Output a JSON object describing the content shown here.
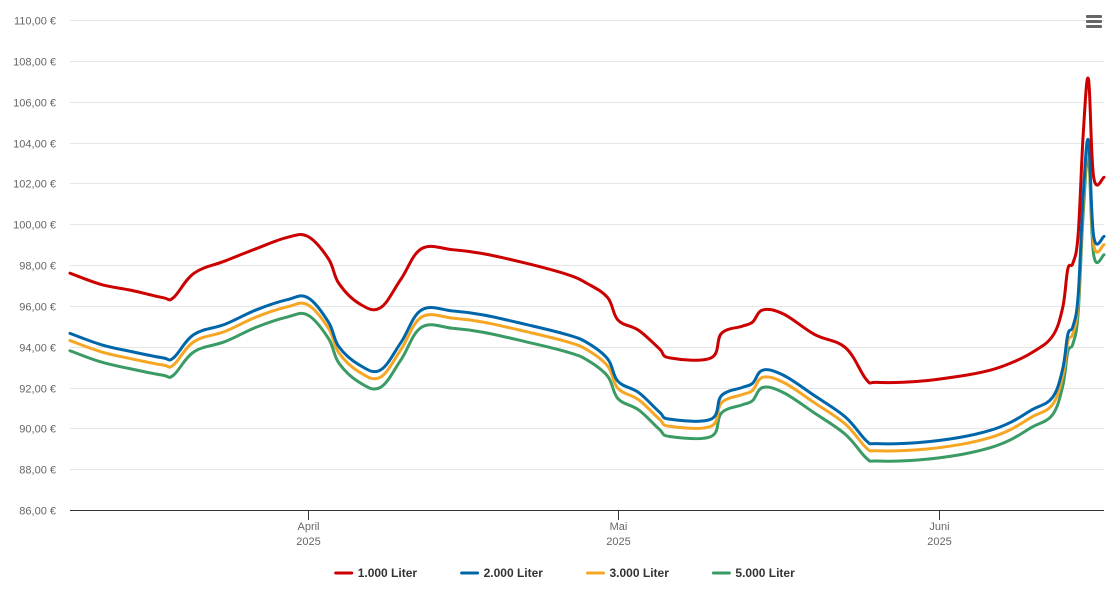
{
  "menu": {
    "icon": "hamburger-menu-icon"
  },
  "chart_data": {
    "type": "line",
    "ylim": [
      86,
      110
    ],
    "yticks": [
      86,
      88,
      90,
      92,
      94,
      96,
      98,
      100,
      102,
      104,
      106,
      108,
      110
    ],
    "ytick_labels": [
      "86,00 €",
      "88,00 €",
      "90,00 €",
      "92,00 €",
      "94,00 €",
      "96,00 €",
      "98,00 €",
      "100,00 €",
      "102,00 €",
      "104,00 €",
      "106,00 €",
      "108,00 €",
      "110,00 €"
    ],
    "xlim": [
      "2025-03-09",
      "2025-06-17"
    ],
    "xticks": [
      {
        "date": "2025-04-01",
        "label": "April",
        "sublabel": "2025"
      },
      {
        "date": "2025-05-01",
        "label": "Mai",
        "sublabel": "2025"
      },
      {
        "date": "2025-06-01",
        "label": "Juni",
        "sublabel": "2025"
      }
    ],
    "grid": true,
    "legend_position": "bottom",
    "series": [
      {
        "name": "1.000 Liter",
        "color": "#cc0000",
        "points": [
          [
            "2025-03-09",
            97.6
          ],
          [
            "2025-03-12",
            97.05
          ],
          [
            "2025-03-15",
            96.75
          ],
          [
            "2025-03-18",
            96.4
          ],
          [
            "2025-03-19",
            96.4
          ],
          [
            "2025-03-21",
            97.6
          ],
          [
            "2025-03-24",
            98.2
          ],
          [
            "2025-03-27",
            98.8
          ],
          [
            "2025-03-30",
            99.35
          ],
          [
            "2025-04-01",
            99.4
          ],
          [
            "2025-04-03",
            98.3
          ],
          [
            "2025-04-04",
            97.1
          ],
          [
            "2025-04-06",
            96.1
          ],
          [
            "2025-04-08",
            95.9
          ],
          [
            "2025-04-10",
            97.3
          ],
          [
            "2025-04-12",
            98.8
          ],
          [
            "2025-04-15",
            98.75
          ],
          [
            "2025-04-18",
            98.55
          ],
          [
            "2025-04-22",
            98.1
          ],
          [
            "2025-04-26",
            97.55
          ],
          [
            "2025-04-28",
            97.1
          ],
          [
            "2025-04-30",
            96.4
          ],
          [
            "2025-05-01",
            95.3
          ],
          [
            "2025-05-03",
            94.8
          ],
          [
            "2025-05-05",
            93.9
          ],
          [
            "2025-05-06",
            93.45
          ],
          [
            "2025-05-10",
            93.45
          ],
          [
            "2025-05-11",
            94.65
          ],
          [
            "2025-05-13",
            95.0
          ],
          [
            "2025-05-14",
            95.2
          ],
          [
            "2025-05-15",
            95.8
          ],
          [
            "2025-05-17",
            95.6
          ],
          [
            "2025-05-20",
            94.6
          ],
          [
            "2025-05-23",
            93.95
          ],
          [
            "2025-05-25",
            92.4
          ],
          [
            "2025-05-26",
            92.25
          ],
          [
            "2025-05-30",
            92.3
          ],
          [
            "2025-06-03",
            92.55
          ],
          [
            "2025-06-06",
            92.85
          ],
          [
            "2025-06-08",
            93.2
          ],
          [
            "2025-06-10",
            93.7
          ],
          [
            "2025-06-12",
            94.5
          ],
          [
            "2025-06-13",
            95.9
          ],
          [
            "2025-06-13.5",
            97.8
          ],
          [
            "2025-06-14",
            98.1
          ],
          [
            "2025-06-14.5",
            99.5
          ],
          [
            "2025-06-15",
            104.5
          ],
          [
            "2025-06-15.5",
            107.1
          ],
          [
            "2025-06-16",
            102.3
          ],
          [
            "2025-06-17",
            102.3
          ]
        ]
      },
      {
        "name": "2.000 Liter",
        "color": "#0066aa",
        "points": [
          [
            "2025-03-09",
            94.65
          ],
          [
            "2025-03-12",
            94.1
          ],
          [
            "2025-03-15",
            93.75
          ],
          [
            "2025-03-18",
            93.45
          ],
          [
            "2025-03-19",
            93.45
          ],
          [
            "2025-03-21",
            94.6
          ],
          [
            "2025-03-24",
            95.1
          ],
          [
            "2025-03-27",
            95.8
          ],
          [
            "2025-03-30",
            96.3
          ],
          [
            "2025-04-01",
            96.4
          ],
          [
            "2025-04-03",
            95.2
          ],
          [
            "2025-04-04",
            94.0
          ],
          [
            "2025-04-06",
            93.1
          ],
          [
            "2025-04-08",
            92.85
          ],
          [
            "2025-04-10",
            94.2
          ],
          [
            "2025-04-12",
            95.8
          ],
          [
            "2025-04-15",
            95.75
          ],
          [
            "2025-04-18",
            95.55
          ],
          [
            "2025-04-22",
            95.1
          ],
          [
            "2025-04-26",
            94.6
          ],
          [
            "2025-04-28",
            94.2
          ],
          [
            "2025-04-30",
            93.4
          ],
          [
            "2025-05-01",
            92.3
          ],
          [
            "2025-05-03",
            91.75
          ],
          [
            "2025-05-05",
            90.8
          ],
          [
            "2025-05-06",
            90.45
          ],
          [
            "2025-05-10",
            90.45
          ],
          [
            "2025-05-11",
            91.6
          ],
          [
            "2025-05-13",
            92.0
          ],
          [
            "2025-05-14",
            92.2
          ],
          [
            "2025-05-15",
            92.85
          ],
          [
            "2025-05-17",
            92.6
          ],
          [
            "2025-05-20",
            91.6
          ],
          [
            "2025-05-23",
            90.55
          ],
          [
            "2025-05-25",
            89.4
          ],
          [
            "2025-05-26",
            89.25
          ],
          [
            "2025-05-30",
            89.3
          ],
          [
            "2025-06-03",
            89.55
          ],
          [
            "2025-06-06",
            89.9
          ],
          [
            "2025-06-08",
            90.3
          ],
          [
            "2025-06-10",
            90.9
          ],
          [
            "2025-06-12",
            91.5
          ],
          [
            "2025-06-13",
            92.9
          ],
          [
            "2025-06-13.5",
            94.6
          ],
          [
            "2025-06-14",
            95.0
          ],
          [
            "2025-06-14.5",
            96.5
          ],
          [
            "2025-06-15",
            101.5
          ],
          [
            "2025-06-15.5",
            104.1
          ],
          [
            "2025-06-16",
            99.4
          ],
          [
            "2025-06-17",
            99.4
          ]
        ]
      },
      {
        "name": "3.000 Liter",
        "color": "#f5a623",
        "points": [
          [
            "2025-03-09",
            94.3
          ],
          [
            "2025-03-12",
            93.75
          ],
          [
            "2025-03-15",
            93.4
          ],
          [
            "2025-03-18",
            93.1
          ],
          [
            "2025-03-19",
            93.1
          ],
          [
            "2025-03-21",
            94.25
          ],
          [
            "2025-03-24",
            94.75
          ],
          [
            "2025-03-27",
            95.45
          ],
          [
            "2025-03-30",
            95.95
          ],
          [
            "2025-04-01",
            96.05
          ],
          [
            "2025-04-03",
            94.9
          ],
          [
            "2025-04-04",
            93.7
          ],
          [
            "2025-04-06",
            92.75
          ],
          [
            "2025-04-08",
            92.5
          ],
          [
            "2025-04-10",
            93.85
          ],
          [
            "2025-04-12",
            95.45
          ],
          [
            "2025-04-15",
            95.4
          ],
          [
            "2025-04-18",
            95.2
          ],
          [
            "2025-04-22",
            94.75
          ],
          [
            "2025-04-26",
            94.25
          ],
          [
            "2025-04-28",
            93.85
          ],
          [
            "2025-04-30",
            93.05
          ],
          [
            "2025-05-01",
            91.95
          ],
          [
            "2025-05-03",
            91.4
          ],
          [
            "2025-05-05",
            90.45
          ],
          [
            "2025-05-06",
            90.1
          ],
          [
            "2025-05-10",
            90.1
          ],
          [
            "2025-05-11",
            91.25
          ],
          [
            "2025-05-13",
            91.65
          ],
          [
            "2025-05-14",
            91.85
          ],
          [
            "2025-05-15",
            92.5
          ],
          [
            "2025-05-17",
            92.25
          ],
          [
            "2025-05-20",
            91.25
          ],
          [
            "2025-05-23",
            90.2
          ],
          [
            "2025-05-25",
            89.05
          ],
          [
            "2025-05-26",
            88.9
          ],
          [
            "2025-05-30",
            88.95
          ],
          [
            "2025-06-03",
            89.2
          ],
          [
            "2025-06-06",
            89.55
          ],
          [
            "2025-06-08",
            89.95
          ],
          [
            "2025-06-10",
            90.55
          ],
          [
            "2025-06-12",
            91.15
          ],
          [
            "2025-06-13",
            92.55
          ],
          [
            "2025-06-13.5",
            94.25
          ],
          [
            "2025-06-14",
            94.65
          ],
          [
            "2025-06-14.5",
            96.15
          ],
          [
            "2025-06-15",
            101.15
          ],
          [
            "2025-06-15.5",
            103.7
          ],
          [
            "2025-06-16",
            99.0
          ],
          [
            "2025-06-17",
            99.0
          ]
        ]
      },
      {
        "name": "5.000 Liter",
        "color": "#3a9b64",
        "points": [
          [
            "2025-03-09",
            93.8
          ],
          [
            "2025-03-12",
            93.25
          ],
          [
            "2025-03-15",
            92.9
          ],
          [
            "2025-03-18",
            92.6
          ],
          [
            "2025-03-19",
            92.6
          ],
          [
            "2025-03-21",
            93.75
          ],
          [
            "2025-03-24",
            94.25
          ],
          [
            "2025-03-27",
            94.95
          ],
          [
            "2025-03-30",
            95.45
          ],
          [
            "2025-04-01",
            95.55
          ],
          [
            "2025-04-03",
            94.4
          ],
          [
            "2025-04-04",
            93.2
          ],
          [
            "2025-04-06",
            92.25
          ],
          [
            "2025-04-08",
            92.0
          ],
          [
            "2025-04-10",
            93.35
          ],
          [
            "2025-04-12",
            94.95
          ],
          [
            "2025-04-15",
            94.9
          ],
          [
            "2025-04-18",
            94.7
          ],
          [
            "2025-04-22",
            94.25
          ],
          [
            "2025-04-26",
            93.75
          ],
          [
            "2025-04-28",
            93.35
          ],
          [
            "2025-04-30",
            92.55
          ],
          [
            "2025-05-01",
            91.45
          ],
          [
            "2025-05-03",
            90.9
          ],
          [
            "2025-05-05",
            89.95
          ],
          [
            "2025-05-06",
            89.6
          ],
          [
            "2025-05-10",
            89.6
          ],
          [
            "2025-05-11",
            90.75
          ],
          [
            "2025-05-13",
            91.15
          ],
          [
            "2025-05-14",
            91.35
          ],
          [
            "2025-05-15",
            92.0
          ],
          [
            "2025-05-17",
            91.75
          ],
          [
            "2025-05-20",
            90.75
          ],
          [
            "2025-05-23",
            89.7
          ],
          [
            "2025-05-25",
            88.55
          ],
          [
            "2025-05-26",
            88.4
          ],
          [
            "2025-05-30",
            88.45
          ],
          [
            "2025-06-03",
            88.7
          ],
          [
            "2025-06-06",
            89.05
          ],
          [
            "2025-06-08",
            89.45
          ],
          [
            "2025-06-10",
            90.05
          ],
          [
            "2025-06-12",
            90.65
          ],
          [
            "2025-06-13",
            92.05
          ],
          [
            "2025-06-13.5",
            93.75
          ],
          [
            "2025-06-14",
            94.15
          ],
          [
            "2025-06-14.5",
            95.65
          ],
          [
            "2025-06-15",
            100.65
          ],
          [
            "2025-06-15.5",
            103.3
          ],
          [
            "2025-06-16",
            98.5
          ],
          [
            "2025-06-17",
            98.5
          ]
        ]
      }
    ]
  }
}
